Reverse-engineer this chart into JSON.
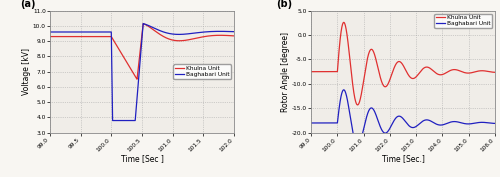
{
  "panel_a": {
    "label": "(a)",
    "xlim": [
      99.0,
      102.0
    ],
    "ylim": [
      3.0,
      11.0
    ],
    "xticks": [
      99.0,
      99.5,
      100.0,
      100.5,
      101.0,
      101.5,
      102.0
    ],
    "xticklabels": [
      "99.0",
      "99.5",
      "100.0",
      "100.5",
      "101.0",
      "101.5",
      "102.0"
    ],
    "yticks": [
      3.0,
      4.0,
      5.0,
      6.0,
      7.0,
      8.0,
      9.0,
      10.0,
      11.0
    ],
    "yticklabels": [
      "3.0",
      "4.0",
      "5.0",
      "6.0",
      "7.0",
      "8.0",
      "9.0",
      "10.0",
      "11.0"
    ],
    "xlabel": "Time [Sec ]",
    "ylabel": "Voltage [kV]",
    "legend": [
      "Khulna Unit",
      "Baghabari Unit"
    ],
    "khulna_color": "#e03030",
    "baghabari_color": "#2020c0",
    "bg_color": "#f0ede8"
  },
  "panel_b": {
    "label": "(b)",
    "xlim": [
      99.0,
      106.0
    ],
    "ylim": [
      -20.0,
      5.0
    ],
    "xticks": [
      99.0,
      100.0,
      101.0,
      102.0,
      103.0,
      104.0,
      105.0,
      106.0
    ],
    "xticklabels": [
      "99.0",
      "100.0",
      "101.0",
      "102.0",
      "103.0",
      "104.0",
      "105.0",
      "106.0"
    ],
    "yticks": [
      -20.0,
      -15.0,
      -10.0,
      -5.0,
      0.0,
      5.0
    ],
    "yticklabels": [
      "-20.0",
      "-15.0",
      "-10.0",
      "-5.0",
      "0.0",
      "5.0"
    ],
    "xlabel": "Time [Sec.]",
    "ylabel": "Rotor Angle [degree]",
    "legend": [
      "Khulna Unit",
      "Baghabari Unit"
    ],
    "khulna_color": "#e03030",
    "baghabari_color": "#2020c0",
    "bg_color": "#f0ede8"
  }
}
